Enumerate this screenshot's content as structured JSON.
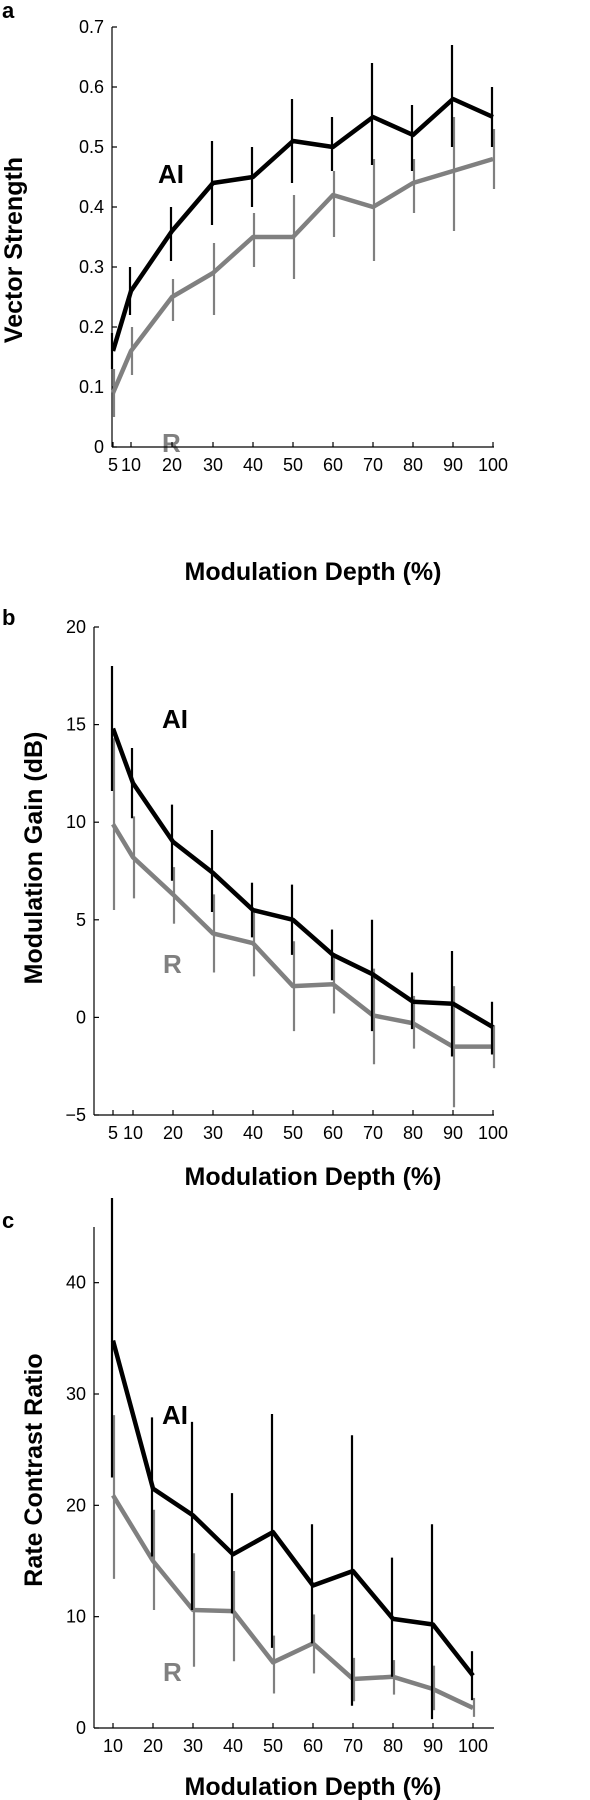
{
  "series_colors": {
    "AI": "#000000",
    "R": "#808080"
  },
  "chart_data": [
    {
      "panel": "a",
      "type": "line",
      "ylabel": "Vector Strength",
      "xlabel": "Modulation Depth (%)",
      "x": [
        5,
        10,
        20,
        30,
        40,
        50,
        60,
        70,
        80,
        90,
        100
      ],
      "xticks": [
        "5",
        "10",
        "20",
        "30",
        "40",
        "50",
        "60",
        "70",
        "80",
        "90",
        "100"
      ],
      "yticks": [
        "0",
        "0.1",
        "0.2",
        "0.3",
        "0.4",
        "0.5",
        "0.6",
        "0.7"
      ],
      "ylim": [
        0,
        0.7
      ],
      "grid": false,
      "series": [
        {
          "name": "AI",
          "values": [
            0.16,
            0.26,
            0.36,
            0.44,
            0.45,
            0.51,
            0.5,
            0.55,
            0.52,
            0.58,
            0.55
          ],
          "err_low": [
            0.13,
            0.22,
            0.31,
            0.37,
            0.4,
            0.44,
            0.46,
            0.47,
            0.46,
            0.5,
            0.5
          ],
          "err_high": [
            0.19,
            0.3,
            0.4,
            0.51,
            0.5,
            0.58,
            0.55,
            0.64,
            0.57,
            0.67,
            0.6
          ]
        },
        {
          "name": "R",
          "values": [
            0.09,
            0.16,
            0.25,
            0.29,
            0.35,
            0.35,
            0.42,
            0.4,
            0.44,
            0.46,
            0.48
          ],
          "err_low": [
            0.05,
            0.12,
            0.21,
            0.22,
            0.3,
            0.28,
            0.35,
            0.31,
            0.39,
            0.36,
            0.43
          ],
          "err_high": [
            0.13,
            0.2,
            0.28,
            0.34,
            0.39,
            0.42,
            0.46,
            0.48,
            0.48,
            0.55,
            0.53
          ]
        }
      ]
    },
    {
      "panel": "b",
      "type": "line",
      "ylabel": "Modulation Gain (dB)",
      "xlabel": "Modulation Depth (%)",
      "x": [
        5,
        10,
        20,
        30,
        40,
        50,
        60,
        70,
        80,
        90,
        100
      ],
      "xticks": [
        "5",
        "10",
        "20",
        "30",
        "40",
        "50",
        "60",
        "70",
        "80",
        "90",
        "100"
      ],
      "yticks": [
        "−5",
        "0",
        "5",
        "10",
        "15",
        "20"
      ],
      "ylim": [
        -5,
        20
      ],
      "grid": false,
      "series": [
        {
          "name": "AI",
          "values": [
            14.8,
            12.0,
            9.0,
            7.4,
            5.5,
            5.0,
            3.2,
            2.2,
            0.8,
            0.7,
            -0.5
          ],
          "err_low": [
            11.6,
            10.2,
            7.0,
            5.4,
            4.1,
            3.2,
            1.9,
            -0.7,
            -0.6,
            -2.0,
            -1.9
          ],
          "err_high": [
            18.0,
            13.8,
            10.9,
            9.6,
            6.9,
            6.8,
            4.5,
            5.0,
            2.3,
            3.4,
            0.8
          ]
        },
        {
          "name": "R",
          "values": [
            9.9,
            8.2,
            6.3,
            4.3,
            3.8,
            1.6,
            1.7,
            0.1,
            -0.3,
            -1.5,
            -1.5
          ],
          "err_low": [
            5.5,
            6.1,
            4.8,
            2.3,
            2.1,
            -0.7,
            0.2,
            -2.4,
            -1.6,
            -4.6,
            -2.6
          ],
          "err_high": [
            14.3,
            10.3,
            7.7,
            6.3,
            5.5,
            3.9,
            3.3,
            2.5,
            1.1,
            1.6,
            -0.4
          ]
        }
      ]
    },
    {
      "panel": "c",
      "type": "line",
      "ylabel": "Rate Contrast Ratio",
      "xlabel": "Modulation Depth (%)",
      "x": [
        10,
        20,
        30,
        40,
        50,
        60,
        70,
        80,
        90,
        100
      ],
      "xticks": [
        "10",
        "20",
        "30",
        "40",
        "50",
        "60",
        "70",
        "80",
        "90",
        "100"
      ],
      "yticks": [
        "0",
        "10",
        "20",
        "30",
        "40"
      ],
      "ylim": [
        0,
        45
      ],
      "grid": false,
      "series": [
        {
          "name": "AI",
          "values": [
            34.8,
            21.5,
            19.1,
            15.6,
            17.6,
            12.8,
            14.1,
            9.8,
            9.3,
            4.7
          ],
          "err_low": [
            22.5,
            15.4,
            10.6,
            10.3,
            7.2,
            7.6,
            2.0,
            4.6,
            0.8,
            2.5
          ],
          "err_high": [
            47.6,
            27.9,
            27.5,
            21.1,
            28.2,
            18.3,
            26.3,
            15.3,
            18.3,
            6.9
          ]
        },
        {
          "name": "R",
          "values": [
            20.9,
            15.0,
            10.6,
            10.5,
            5.9,
            7.6,
            4.4,
            4.6,
            3.5,
            1.8
          ],
          "err_low": [
            13.4,
            10.6,
            5.5,
            6.0,
            3.1,
            4.9,
            2.4,
            3.0,
            1.6,
            1.0
          ],
          "err_high": [
            28.1,
            19.6,
            15.7,
            14.1,
            8.3,
            10.2,
            6.3,
            6.1,
            5.6,
            2.7
          ]
        }
      ]
    }
  ]
}
